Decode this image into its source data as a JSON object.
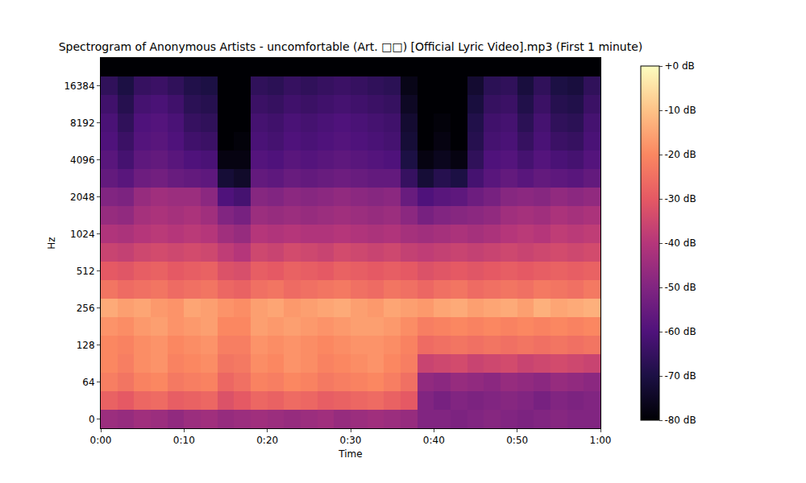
{
  "chart_data": {
    "type": "heatmap",
    "title": "Spectrogram of Anonymous Artists - uncomfortable (Art. □□) [Official Lyric Video].mp3 (First 1 minute)",
    "xlabel": "Time",
    "ylabel": "Hz",
    "x": [
      1,
      3,
      5,
      7,
      9,
      11,
      13,
      15,
      17,
      19,
      21,
      23,
      25,
      27,
      29,
      31,
      33,
      35,
      37,
      39,
      41,
      43,
      45,
      47,
      49,
      51,
      53,
      55,
      57,
      59
    ],
    "xlim": [
      0,
      60
    ],
    "xticks": [
      {
        "value": 0,
        "label": "0:00"
      },
      {
        "value": 10,
        "label": "0:10"
      },
      {
        "value": 20,
        "label": "0:20"
      },
      {
        "value": 30,
        "label": "0:30"
      },
      {
        "value": 40,
        "label": "0:40"
      },
      {
        "value": 50,
        "label": "0:50"
      },
      {
        "value": 60,
        "label": "1:00"
      }
    ],
    "y": [
      0,
      null,
      64,
      null,
      128,
      null,
      256,
      null,
      512,
      null,
      1024,
      null,
      2048,
      null,
      4096,
      null,
      8192,
      null,
      16384,
      null
    ],
    "z": [
      [
        -45,
        -46,
        -44,
        -45,
        -47,
        -45,
        -44,
        -46,
        -45,
        -44,
        -45,
        -46,
        -45,
        -44,
        -46,
        -45,
        -44,
        -45,
        -46,
        -50,
        -50,
        -51,
        -50,
        -49,
        -50,
        -51,
        -50,
        -49,
        -50,
        -50
      ],
      [
        -28,
        -30,
        -27,
        -26,
        -29,
        -28,
        -27,
        -32,
        -30,
        -27,
        -28,
        -26,
        -27,
        -29,
        -28,
        -27,
        -26,
        -28,
        -30,
        -50,
        -52,
        -50,
        -51,
        -50,
        -49,
        -50,
        -52,
        -50,
        -51,
        -50
      ],
      [
        -22,
        -24,
        -21,
        -20,
        -23,
        -22,
        -21,
        -27,
        -25,
        -21,
        -22,
        -20,
        -21,
        -23,
        -22,
        -21,
        -20,
        -22,
        -25,
        -47,
        -48,
        -46,
        -47,
        -48,
        -46,
        -47,
        -48,
        -46,
        -47,
        -48
      ],
      [
        -20,
        -22,
        -19,
        -18,
        -21,
        -20,
        -19,
        -24,
        -23,
        -19,
        -20,
        -18,
        -19,
        -21,
        -20,
        -19,
        -18,
        -20,
        -22,
        -36,
        -35,
        -34,
        -36,
        -35,
        -34,
        -36,
        -35,
        -34,
        -35,
        -36
      ],
      [
        -20,
        -21,
        -19,
        -18,
        -20,
        -19,
        -18,
        -22,
        -22,
        -18,
        -19,
        -18,
        -19,
        -20,
        -19,
        -18,
        -18,
        -19,
        -21,
        -26,
        -25,
        -24,
        -25,
        -24,
        -25,
        -24,
        -25,
        -24,
        -25,
        -24
      ],
      [
        -18,
        -19,
        -17,
        -16,
        -18,
        -17,
        -16,
        -20,
        -20,
        -16,
        -17,
        -16,
        -17,
        -18,
        -17,
        -16,
        -16,
        -17,
        -19,
        -22,
        -21,
        -20,
        -21,
        -20,
        -21,
        -20,
        -21,
        -20,
        -21,
        -20
      ],
      [
        -14,
        -16,
        -15,
        -17,
        -18,
        -15,
        -16,
        -18,
        -19,
        -16,
        -15,
        -17,
        -16,
        -15,
        -14,
        -16,
        -17,
        -15,
        -16,
        -17,
        -15,
        -14,
        -16,
        -15,
        -14,
        -16,
        -13,
        -15,
        -14,
        -13
      ],
      [
        -24,
        -26,
        -25,
        -24,
        -26,
        -25,
        -24,
        -27,
        -28,
        -25,
        -24,
        -26,
        -25,
        -24,
        -23,
        -25,
        -26,
        -24,
        -25,
        -27,
        -25,
        -24,
        -26,
        -25,
        -24,
        -25,
        -23,
        -24,
        -25,
        -23
      ],
      [
        -30,
        -31,
        -29,
        -28,
        -30,
        -29,
        -28,
        -32,
        -33,
        -29,
        -30,
        -28,
        -29,
        -30,
        -28,
        -29,
        -30,
        -29,
        -30,
        -32,
        -31,
        -30,
        -31,
        -30,
        -29,
        -30,
        -29,
        -28,
        -29,
        -28
      ],
      [
        -36,
        -37,
        -35,
        -34,
        -35,
        -34,
        -35,
        -38,
        -40,
        -35,
        -36,
        -34,
        -35,
        -36,
        -34,
        -35,
        -36,
        -35,
        -37,
        -38,
        -37,
        -36,
        -37,
        -36,
        -35,
        -36,
        -35,
        -34,
        -35,
        -34
      ],
      [
        -41,
        -42,
        -40,
        -39,
        -40,
        -39,
        -40,
        -44,
        -46,
        -40,
        -41,
        -40,
        -41,
        -41,
        -40,
        -41,
        -42,
        -41,
        -43,
        -44,
        -43,
        -42,
        -43,
        -42,
        -40,
        -39,
        -40,
        -38,
        -39,
        -38
      ],
      [
        -46,
        -47,
        -43,
        -42,
        -43,
        -42,
        -44,
        -50,
        -52,
        -45,
        -46,
        -45,
        -46,
        -45,
        -44,
        -45,
        -46,
        -45,
        -48,
        -52,
        -50,
        -49,
        -48,
        -47,
        -44,
        -43,
        -44,
        -42,
        -43,
        -42
      ],
      [
        -50,
        -51,
        -46,
        -44,
        -45,
        -45,
        -48,
        -60,
        -62,
        -49,
        -50,
        -48,
        -49,
        -48,
        -47,
        -48,
        -49,
        -48,
        -55,
        -60,
        -58,
        -57,
        -54,
        -52,
        -49,
        -48,
        -49,
        -47,
        -48,
        -47
      ],
      [
        -56,
        -58,
        -54,
        -53,
        -55,
        -56,
        -57,
        -72,
        -74,
        -56,
        -57,
        -55,
        -56,
        -55,
        -54,
        -55,
        -56,
        -56,
        -65,
        -72,
        -68,
        -70,
        -62,
        -58,
        -56,
        -58,
        -56,
        -57,
        -58,
        -56
      ],
      [
        -58,
        -62,
        -57,
        -56,
        -58,
        -60,
        -61,
        -78,
        -78,
        -59,
        -60,
        -58,
        -59,
        -58,
        -57,
        -58,
        -59,
        -60,
        -70,
        -78,
        -76,
        -78,
        -66,
        -60,
        -59,
        -62,
        -59,
        -61,
        -62,
        -59
      ],
      [
        -60,
        -64,
        -59,
        -58,
        -60,
        -63,
        -64,
        -80,
        -79,
        -61,
        -62,
        -60,
        -61,
        -60,
        -59,
        -60,
        -61,
        -62,
        -72,
        -80,
        -78,
        -80,
        -68,
        -62,
        -61,
        -65,
        -61,
        -64,
        -65,
        -61
      ],
      [
        -61,
        -66,
        -60,
        -59,
        -61,
        -65,
        -66,
        -80,
        -80,
        -62,
        -63,
        -61,
        -62,
        -61,
        -60,
        -61,
        -62,
        -63,
        -73,
        -80,
        -79,
        -80,
        -69,
        -63,
        -62,
        -67,
        -62,
        -66,
        -67,
        -62
      ],
      [
        -63,
        -68,
        -62,
        -61,
        -63,
        -67,
        -68,
        -80,
        -80,
        -64,
        -65,
        -63,
        -64,
        -63,
        -62,
        -63,
        -64,
        -65,
        -75,
        -80,
        -80,
        -80,
        -71,
        -65,
        -64,
        -69,
        -64,
        -68,
        -69,
        -64
      ],
      [
        -66,
        -70,
        -65,
        -64,
        -66,
        -69,
        -70,
        -80,
        -80,
        -66,
        -67,
        -65,
        -66,
        -65,
        -64,
        -65,
        -66,
        -67,
        -77,
        -80,
        -80,
        -80,
        -73,
        -67,
        -66,
        -71,
        -66,
        -70,
        -71,
        -66
      ],
      [
        -80,
        -80,
        -80,
        -80,
        -80,
        -80,
        -80,
        -80,
        -80,
        -80,
        -80,
        -80,
        -80,
        -80,
        -80,
        -80,
        -80,
        -80,
        -80,
        -80,
        -80,
        -80,
        -80,
        -80,
        -80,
        -80,
        -80,
        -80,
        -80,
        -80
      ]
    ],
    "zlim": [
      -80,
      0
    ],
    "zticks": [
      {
        "value": 0,
        "label": "+0 dB"
      },
      {
        "value": -10,
        "label": "-10 dB"
      },
      {
        "value": -20,
        "label": "-20 dB"
      },
      {
        "value": -30,
        "label": "-30 dB"
      },
      {
        "value": -40,
        "label": "-40 dB"
      },
      {
        "value": -50,
        "label": "-50 dB"
      },
      {
        "value": -60,
        "label": "-60 dB"
      },
      {
        "value": -70,
        "label": "-70 dB"
      },
      {
        "value": -80,
        "label": "-80 dB"
      }
    ]
  }
}
